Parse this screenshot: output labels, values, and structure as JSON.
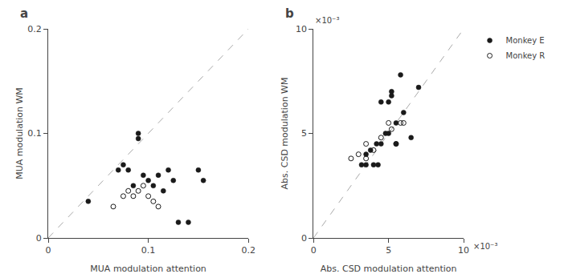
{
  "chart_data": [
    {
      "type": "scatter",
      "title": "a",
      "xlabel": "MUA modulation attention",
      "ylabel": "MUA modulation WM",
      "series": [
        {
          "type": "line",
          "line_style": "dashed",
          "color": "#aaaaaa",
          "x": [
            0,
            0.2
          ],
          "values": [
            0,
            0.2
          ]
        },
        {
          "marker": "filled",
          "color": "#1a1a1a",
          "x": [
            0.04,
            0.07,
            0.075,
            0.08,
            0.085,
            0.09,
            0.09,
            0.095,
            0.1,
            0.105,
            0.11,
            0.115,
            0.12,
            0.125,
            0.13,
            0.14,
            0.15,
            0.155
          ],
          "values": [
            0.035,
            0.065,
            0.07,
            0.065,
            0.05,
            0.095,
            0.1,
            0.06,
            0.055,
            0.05,
            0.06,
            0.045,
            0.065,
            0.055,
            0.015,
            0.015,
            0.065,
            0.055
          ]
        },
        {
          "marker": "open",
          "color": "#1a1a1a",
          "x": [
            0.065,
            0.075,
            0.08,
            0.085,
            0.09,
            0.095,
            0.1,
            0.105,
            0.11
          ],
          "values": [
            0.03,
            0.04,
            0.045,
            0.04,
            0.045,
            0.05,
            0.04,
            0.035,
            0.03
          ]
        }
      ],
      "xlim": [
        0,
        0.2
      ],
      "ylim": [
        0,
        0.2
      ],
      "xticks": [
        0,
        0.1,
        0.2
      ],
      "yticks": [
        0,
        0.1,
        0.2
      ],
      "grid": false
    },
    {
      "type": "scatter",
      "title": "b",
      "xlabel": "Abs. CSD modulation attention",
      "ylabel": "Abs. CSD modulation WM",
      "series": [
        {
          "type": "line",
          "line_style": "dashed",
          "color": "#aaaaaa",
          "x": [
            0,
            10
          ],
          "values": [
            0,
            10
          ]
        },
        {
          "name": "Monkey E",
          "marker": "filled",
          "color": "#1a1a1a",
          "x": [
            3.2,
            3.5,
            3.5,
            3.8,
            4.0,
            4.2,
            4.3,
            4.5,
            4.5,
            4.8,
            5.0,
            5.0,
            5.2,
            5.2,
            5.5,
            5.5,
            5.8,
            6.0,
            6.5,
            7.0
          ],
          "values": [
            3.5,
            3.5,
            4.0,
            4.2,
            3.5,
            4.5,
            3.5,
            4.5,
            6.5,
            5.0,
            5.0,
            6.5,
            6.8,
            7.0,
            4.5,
            5.5,
            7.8,
            6.0,
            4.8,
            7.2
          ]
        },
        {
          "name": "Monkey R",
          "marker": "open",
          "color": "#1a1a1a",
          "x": [
            2.5,
            3.0,
            3.5,
            3.5,
            4.0,
            4.5,
            5.0,
            5.2,
            5.5,
            5.8,
            6.0
          ],
          "values": [
            3.8,
            4.0,
            3.8,
            4.5,
            4.2,
            4.8,
            5.5,
            5.2,
            4.5,
            5.5,
            5.5
          ]
        }
      ],
      "xlim": [
        0,
        10
      ],
      "ylim": [
        0,
        10
      ],
      "xticks": [
        0,
        5,
        10
      ],
      "yticks": [
        0,
        5,
        10
      ],
      "annotations": [
        "×10⁻³",
        "×10⁻³"
      ],
      "legend": "upper right",
      "grid": false
    }
  ]
}
